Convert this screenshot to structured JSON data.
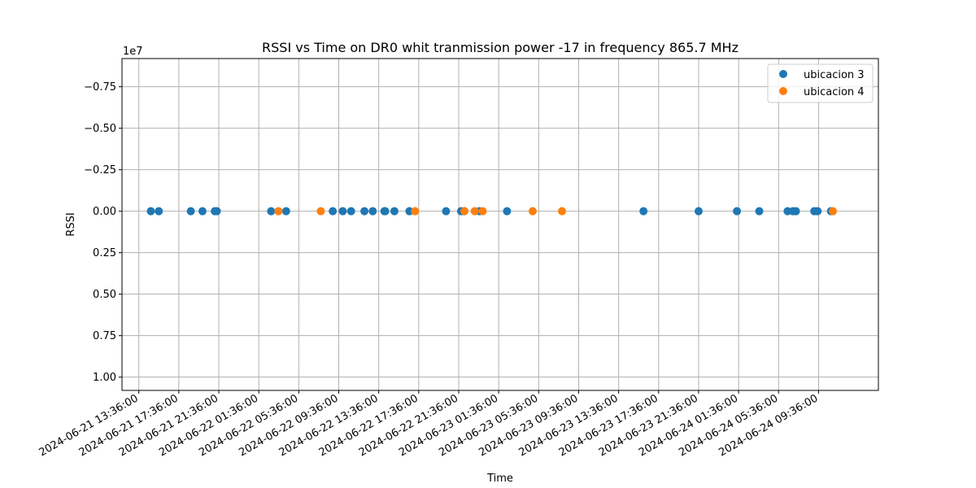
{
  "chart_data": {
    "type": "scatter",
    "title": "RSSI vs Time on DR0  whit tranmission power -17 in frequency 865.7 MHz",
    "xlabel": "Time",
    "ylabel": "RSSI",
    "y_offset_label": "1e7",
    "y_inverted": true,
    "ylim": [
      1.08,
      -0.92
    ],
    "y_ticks": [
      -0.75,
      -0.5,
      -0.25,
      0.0,
      0.25,
      0.5,
      0.75,
      1.0
    ],
    "y_tick_labels": [
      "−0.75",
      "−0.50",
      "−0.25",
      "0.00",
      "0.25",
      "0.50",
      "0.75",
      "1.00"
    ],
    "xlim": [
      "2024-06-21 11:55",
      "2024-06-24 15:35"
    ],
    "x_ticks": [
      "2024-06-21 13:36:00",
      "2024-06-21 17:36:00",
      "2024-06-21 21:36:00",
      "2024-06-22 01:36:00",
      "2024-06-22 05:36:00",
      "2024-06-22 09:36:00",
      "2024-06-22 13:36:00",
      "2024-06-22 17:36:00",
      "2024-06-22 21:36:00",
      "2024-06-23 01:36:00",
      "2024-06-23 05:36:00",
      "2024-06-23 09:36:00",
      "2024-06-23 13:36:00",
      "2024-06-23 17:36:00",
      "2024-06-23 21:36:00",
      "2024-06-24 01:36:00",
      "2024-06-24 05:36:00",
      "2024-06-24 09:36:00"
    ],
    "grid": true,
    "legend_position": "top-right",
    "series": [
      {
        "name": "ubicacion 3",
        "color": "#1f77b4",
        "x": [
          "2024-06-21 14:48",
          "2024-06-21 15:36",
          "2024-06-21 18:48",
          "2024-06-21 19:58",
          "2024-06-21 21:12",
          "2024-06-21 21:24",
          "2024-06-22 02:50",
          "2024-06-22 04:20",
          "2024-06-22 09:00",
          "2024-06-22 10:00",
          "2024-06-22 10:50",
          "2024-06-22 12:10",
          "2024-06-22 13:00",
          "2024-06-22 14:10",
          "2024-06-22 14:15",
          "2024-06-22 15:10",
          "2024-06-22 16:40",
          "2024-06-22 20:20",
          "2024-06-22 21:50",
          "2024-06-22 22:10",
          "2024-06-22 23:40",
          "2024-06-23 02:26",
          "2024-06-23 16:05",
          "2024-06-23 21:36",
          "2024-06-24 01:26",
          "2024-06-24 03:40",
          "2024-06-24 06:30",
          "2024-06-24 07:02",
          "2024-06-24 07:20",
          "2024-06-24 09:10",
          "2024-06-24 09:30",
          "2024-06-24 10:50"
        ],
        "y": [
          0,
          0,
          0,
          0,
          0,
          0,
          0,
          0,
          0,
          0,
          0,
          0,
          0,
          0,
          0,
          0,
          0,
          0,
          0,
          0,
          0,
          0,
          0,
          0,
          0,
          0,
          0,
          0,
          0,
          0,
          0,
          0
        ]
      },
      {
        "name": "ubicacion 4",
        "color": "#ff7f0e",
        "x": [
          "2024-06-22 03:34",
          "2024-06-22 07:48",
          "2024-06-22 17:14",
          "2024-06-22 22:10",
          "2024-06-22 23:12",
          "2024-06-23 00:00",
          "2024-06-23 05:00",
          "2024-06-23 07:56",
          "2024-06-24 11:02"
        ],
        "y": [
          0,
          0,
          0,
          0,
          0,
          0,
          0,
          0,
          0
        ]
      }
    ]
  }
}
